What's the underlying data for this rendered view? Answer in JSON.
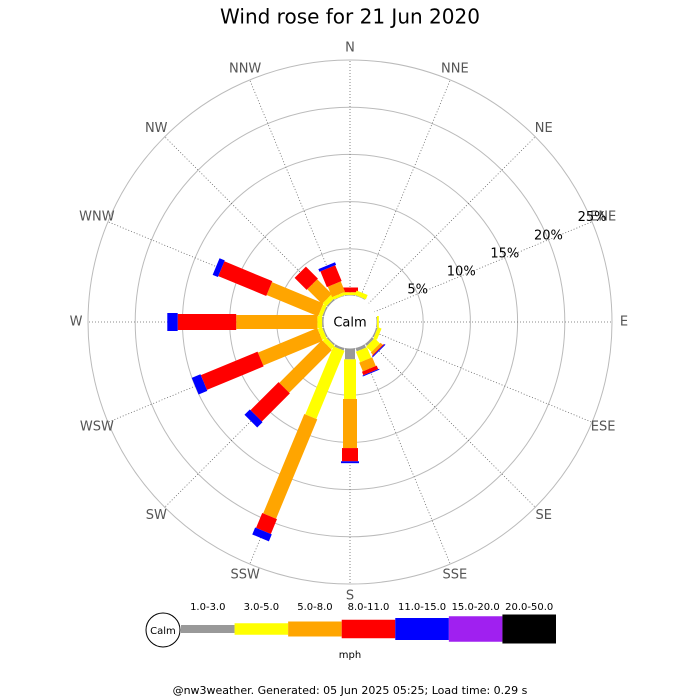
{
  "chart_data": {
    "type": "windrose",
    "title": "Wind rose for 21 Jun 2020",
    "calm_label": "Calm",
    "units": "mph",
    "footer": "@nw3weather. Generated: 05 Jun 2025 05:25; Load time: 0.29 s",
    "categories": [
      "N",
      "NNE",
      "NE",
      "ENE",
      "E",
      "ESE",
      "SE",
      "SSE",
      "S",
      "SSW",
      "SW",
      "WSW",
      "W",
      "WNW",
      "NW",
      "NNW"
    ],
    "rlim": [
      0,
      25
    ],
    "rticks": [
      {
        "value": 5,
        "label": "5%"
      },
      {
        "value": 10,
        "label": "10%"
      },
      {
        "value": 15,
        "label": "15%"
      },
      {
        "value": 20,
        "label": "20%"
      },
      {
        "value": 25,
        "label": "25%"
      }
    ],
    "series": [
      {
        "name": "1.0-3.0",
        "color": "#999999",
        "values": [
          0.1,
          0.1,
          0,
          0,
          0.1,
          0.2,
          0.3,
          0.4,
          1.2,
          0.3,
          0.2,
          0.2,
          0.2,
          0.2,
          0.2,
          0.1
        ]
      },
      {
        "name": "3.0-5.0",
        "color": "#ffff00",
        "values": [
          0.3,
          0.5,
          0,
          0,
          0.2,
          0.4,
          0.8,
          1.2,
          4.2,
          7.8,
          0.5,
          0.5,
          0.5,
          0.4,
          0.5,
          0.3
        ]
      },
      {
        "name": "5.0-8.0",
        "color": "#ffa500",
        "values": [
          0,
          0,
          0,
          0,
          0,
          0,
          0.3,
          1.0,
          5.2,
          11.4,
          6.4,
          6.8,
          8.6,
          5.9,
          2.2,
          1.2
        ]
      },
      {
        "name": "8.0-11.0",
        "color": "#ff0000",
        "values": [
          0.5,
          0,
          0,
          0,
          0,
          0,
          0.1,
          0.4,
          1.4,
          1.7,
          4.2,
          6.5,
          6.2,
          5.5,
          1.8,
          1.8
        ]
      },
      {
        "name": "11.0-15.0",
        "color": "#0000ff",
        "values": [
          0,
          0,
          0,
          0,
          0,
          0,
          0.1,
          0.1,
          0.2,
          0.8,
          0.8,
          1.0,
          1.1,
          0.6,
          0,
          0.3
        ]
      },
      {
        "name": "15.0-20.0",
        "color": "#a020f0",
        "values": [
          0,
          0,
          0,
          0,
          0,
          0,
          0,
          0,
          0,
          0,
          0,
          0,
          0,
          0,
          0,
          0
        ]
      },
      {
        "name": "20.0-50.0",
        "color": "#000000",
        "values": [
          0,
          0,
          0,
          0,
          0,
          0,
          0,
          0,
          0,
          0,
          0,
          0,
          0,
          0,
          0,
          0
        ]
      }
    ]
  }
}
